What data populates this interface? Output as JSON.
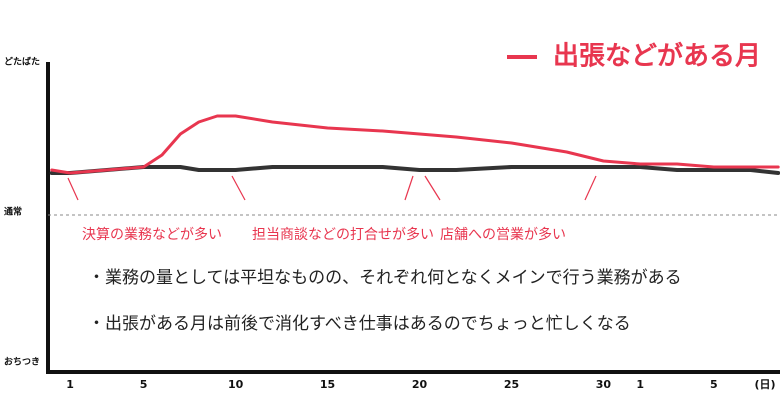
{
  "chart_data": {
    "type": "line",
    "x": [
      0,
      1,
      3,
      5,
      6,
      7,
      8,
      9,
      10,
      12,
      15,
      18,
      20,
      22,
      25,
      28,
      30,
      32,
      34,
      36,
      38,
      39.5
    ],
    "series": [
      {
        "color": "#333333",
        "values": [
          64,
          64,
          65,
          66,
          66,
          66,
          65,
          65,
          65,
          66,
          66,
          66,
          65,
          65,
          66,
          66,
          66,
          66,
          65,
          65,
          65,
          64
        ]
      },
      {
        "name": "出張などがある月",
        "color": "#e8364f",
        "values": [
          65,
          64,
          65,
          66,
          70,
          77,
          81,
          83,
          83,
          81,
          79,
          78,
          77,
          76,
          74,
          71,
          68,
          67,
          67,
          66,
          66,
          66
        ]
      }
    ],
    "xlim": [
      -0.2,
      39.6
    ],
    "xticks": [
      1,
      5,
      10,
      15,
      20,
      25,
      30,
      {
        "value": 32,
        "label": "1"
      },
      {
        "value": 36,
        "label": "5"
      }
    ],
    "xlabel": "(日)",
    "ylim": [
      0,
      100
    ],
    "yticks": [
      {
        "value": 100,
        "label": "どたばた"
      },
      {
        "value": 50,
        "label": "通常"
      },
      {
        "value": 0,
        "label": "おちつき"
      }
    ],
    "grid": "dashed",
    "annotations": [
      "決算の業務などが多い",
      "担当商談などの打合せが多い",
      "店舗への営業が多い"
    ],
    "notes": [
      "・業務の量としては平坦なものの、それぞれ何となくメインで行う業務がある",
      "・出張がある月は前後で消化すべき仕事はあるのでちょっと忙しくなる"
    ]
  }
}
